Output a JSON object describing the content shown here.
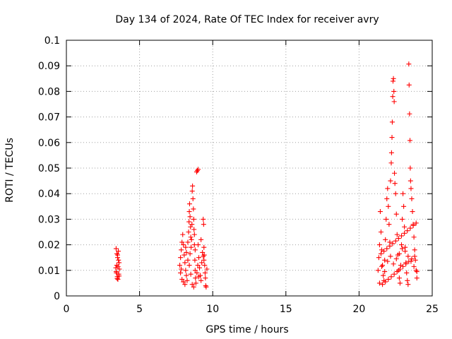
{
  "chart_data": {
    "type": "scatter",
    "title": "Day 134 of 2024, Rate Of TEC Index for receiver avry",
    "xlabel": "GPS time / hours",
    "ylabel": "ROTI / TECUs",
    "xlim": [
      0,
      25
    ],
    "ylim": [
      0,
      0.1
    ],
    "x_ticks": [
      0,
      5,
      10,
      15,
      20,
      25
    ],
    "x_tick_labels": [
      "0",
      "5",
      "10",
      "15",
      "20",
      "25"
    ],
    "y_ticks": [
      0,
      0.01,
      0.02,
      0.03,
      0.04,
      0.05,
      0.06,
      0.07,
      0.08,
      0.09,
      0.1
    ],
    "y_tick_labels": [
      "0",
      "0.01",
      "0.02",
      "0.03",
      "0.04",
      "0.05",
      "0.06",
      "0.07",
      "0.08",
      "0.09",
      "0.1"
    ],
    "grid": true,
    "marker": "+",
    "color": "#ff0000",
    "series": [
      {
        "points": [
          [
            3.4,
            0.0185
          ],
          [
            3.45,
            0.0165
          ],
          [
            3.5,
            0.015
          ],
          [
            3.55,
            0.0175
          ],
          [
            3.6,
            0.013
          ],
          [
            3.38,
            0.011
          ],
          [
            3.42,
            0.009
          ],
          [
            3.48,
            0.0075
          ],
          [
            3.52,
            0.0065
          ],
          [
            3.58,
            0.0085
          ],
          [
            3.62,
            0.0105
          ],
          [
            3.44,
            0.012
          ],
          [
            3.56,
            0.014
          ],
          [
            3.5,
            0.016
          ],
          [
            3.4,
            0.0095
          ],
          [
            3.6,
            0.0078
          ],
          [
            3.47,
            0.0068
          ],
          [
            3.53,
            0.0115
          ],
          [
            7.75,
            0.012
          ],
          [
            7.8,
            0.015
          ],
          [
            7.85,
            0.018
          ],
          [
            7.9,
            0.021
          ],
          [
            7.95,
            0.024
          ],
          [
            8.0,
            0.02
          ],
          [
            8.05,
            0.016
          ],
          [
            8.1,
            0.013
          ],
          [
            8.15,
            0.01
          ],
          [
            8.2,
            0.008
          ],
          [
            8.25,
            0.006
          ],
          [
            8.3,
            0.014
          ],
          [
            8.35,
            0.025
          ],
          [
            8.38,
            0.029
          ],
          [
            8.4,
            0.033
          ],
          [
            8.42,
            0.036
          ],
          [
            8.45,
            0.031
          ],
          [
            8.48,
            0.027
          ],
          [
            8.5,
            0.023
          ],
          [
            8.52,
            0.019
          ],
          [
            8.55,
            0.022
          ],
          [
            8.58,
            0.028
          ],
          [
            8.6,
            0.041
          ],
          [
            8.62,
            0.043
          ],
          [
            8.65,
            0.038
          ],
          [
            8.68,
            0.034
          ],
          [
            8.7,
            0.03
          ],
          [
            8.72,
            0.026
          ],
          [
            8.75,
            0.02
          ],
          [
            8.78,
            0.014
          ],
          [
            8.8,
            0.01
          ],
          [
            8.82,
            0.007
          ],
          [
            8.85,
            0.005
          ],
          [
            8.9,
            0.0485
          ],
          [
            8.95,
            0.049
          ],
          [
            9.0,
            0.0495
          ],
          [
            8.92,
            0.009
          ],
          [
            8.98,
            0.012
          ],
          [
            9.05,
            0.015
          ],
          [
            9.1,
            0.011
          ],
          [
            9.15,
            0.008
          ],
          [
            9.2,
            0.006
          ],
          [
            9.25,
            0.013
          ],
          [
            9.3,
            0.017
          ],
          [
            9.35,
            0.03
          ],
          [
            9.38,
            0.028
          ],
          [
            9.4,
            0.019
          ],
          [
            9.42,
            0.016
          ],
          [
            9.45,
            0.012
          ],
          [
            9.48,
            0.009
          ],
          [
            9.5,
            0.007
          ],
          [
            9.52,
            0.004
          ],
          [
            9.55,
            0.0035
          ],
          [
            9.6,
            0.0105
          ],
          [
            7.8,
            0.009
          ],
          [
            7.9,
            0.0065
          ],
          [
            8.0,
            0.0055
          ],
          [
            8.1,
            0.0045
          ],
          [
            8.2,
            0.017
          ],
          [
            8.3,
            0.021
          ],
          [
            8.4,
            0.012
          ],
          [
            8.5,
            0.0085
          ],
          [
            8.6,
            0.0045
          ],
          [
            8.7,
            0.0035
          ],
          [
            8.8,
            0.018
          ],
          [
            9.0,
            0.02
          ],
          [
            9.2,
            0.022
          ],
          [
            9.4,
            0.014
          ],
          [
            7.85,
            0.0105
          ],
          [
            8.15,
            0.019
          ],
          [
            8.45,
            0.0165
          ],
          [
            8.75,
            0.024
          ],
          [
            9.05,
            0.0075
          ],
          [
            9.35,
            0.0155
          ],
          [
            21.3,
            0.01
          ],
          [
            21.35,
            0.015
          ],
          [
            21.4,
            0.02
          ],
          [
            21.45,
            0.033
          ],
          [
            21.5,
            0.025
          ],
          [
            21.55,
            0.018
          ],
          [
            21.6,
            0.012
          ],
          [
            21.65,
            0.008
          ],
          [
            21.7,
            0.006
          ],
          [
            21.75,
            0.014
          ],
          [
            21.8,
            0.022
          ],
          [
            21.85,
            0.03
          ],
          [
            21.9,
            0.038
          ],
          [
            21.95,
            0.042
          ],
          [
            22.0,
            0.035
          ],
          [
            22.05,
            0.028
          ],
          [
            22.1,
            0.021
          ],
          [
            22.15,
            0.045
          ],
          [
            22.2,
            0.052
          ],
          [
            22.22,
            0.056
          ],
          [
            22.25,
            0.062
          ],
          [
            22.27,
            0.068
          ],
          [
            22.3,
            0.078
          ],
          [
            22.32,
            0.084
          ],
          [
            22.35,
            0.085
          ],
          [
            22.38,
            0.08
          ],
          [
            22.4,
            0.076
          ],
          [
            22.42,
            0.048
          ],
          [
            22.45,
            0.044
          ],
          [
            22.5,
            0.04
          ],
          [
            22.55,
            0.032
          ],
          [
            22.6,
            0.024
          ],
          [
            22.65,
            0.016
          ],
          [
            22.7,
            0.01
          ],
          [
            22.75,
            0.007
          ],
          [
            22.8,
            0.005
          ],
          [
            22.85,
            0.012
          ],
          [
            22.9,
            0.02
          ],
          [
            22.95,
            0.03
          ],
          [
            23.0,
            0.04
          ],
          [
            23.05,
            0.035
          ],
          [
            23.1,
            0.027
          ],
          [
            23.15,
            0.019
          ],
          [
            23.2,
            0.013
          ],
          [
            23.25,
            0.009
          ],
          [
            23.3,
            0.006
          ],
          [
            23.35,
            0.0045
          ],
          [
            23.4,
            0.0907
          ],
          [
            23.42,
            0.0825
          ],
          [
            23.45,
            0.0712
          ],
          [
            23.48,
            0.0608
          ],
          [
            23.5,
            0.05
          ],
          [
            23.52,
            0.045
          ],
          [
            23.55,
            0.042
          ],
          [
            23.6,
            0.038
          ],
          [
            23.65,
            0.033
          ],
          [
            23.7,
            0.028
          ],
          [
            23.75,
            0.023
          ],
          [
            23.8,
            0.018
          ],
          [
            23.85,
            0.014
          ],
          [
            23.9,
            0.01
          ],
          [
            23.95,
            0.007
          ],
          [
            21.4,
            0.005
          ],
          [
            21.6,
            0.0045
          ],
          [
            21.8,
            0.0055
          ],
          [
            22.0,
            0.0065
          ],
          [
            22.2,
            0.0075
          ],
          [
            22.4,
            0.0085
          ],
          [
            22.6,
            0.0095
          ],
          [
            22.8,
            0.0105
          ],
          [
            23.0,
            0.0115
          ],
          [
            23.2,
            0.0125
          ],
          [
            23.4,
            0.0135
          ],
          [
            23.6,
            0.0145
          ],
          [
            23.8,
            0.0155
          ],
          [
            21.5,
            0.0165
          ],
          [
            21.7,
            0.0175
          ],
          [
            21.9,
            0.0185
          ],
          [
            22.1,
            0.0195
          ],
          [
            22.3,
            0.0205
          ],
          [
            22.5,
            0.0215
          ],
          [
            22.7,
            0.0225
          ],
          [
            22.9,
            0.0235
          ],
          [
            23.1,
            0.0245
          ],
          [
            23.3,
            0.0255
          ],
          [
            23.5,
            0.0265
          ],
          [
            23.7,
            0.0275
          ],
          [
            23.9,
            0.0285
          ],
          [
            21.55,
            0.0115
          ],
          [
            21.75,
            0.0095
          ],
          [
            21.95,
            0.0135
          ],
          [
            22.15,
            0.0155
          ],
          [
            22.35,
            0.0125
          ],
          [
            22.55,
            0.0145
          ],
          [
            22.75,
            0.0165
          ],
          [
            22.95,
            0.0185
          ],
          [
            23.15,
            0.0175
          ],
          [
            23.35,
            0.0155
          ],
          [
            23.55,
            0.0135
          ],
          [
            23.75,
            0.0115
          ],
          [
            23.95,
            0.0095
          ]
        ]
      }
    ]
  }
}
